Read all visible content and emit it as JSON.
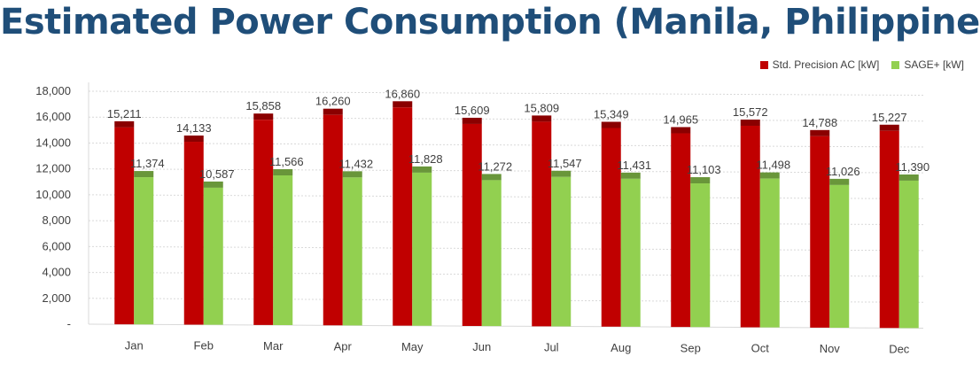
{
  "colors": {
    "title": "#1f4e79",
    "series1": "#c00000",
    "series2": "#92d050",
    "axis_text": "#404040",
    "grid": "#d9d9d9"
  },
  "chart_data": {
    "type": "bar",
    "title": "Estimated Power Consumption (Manila, Philippines)",
    "categories": [
      "Jan",
      "Feb",
      "Mar",
      "Apr",
      "May",
      "Jun",
      "Jul",
      "Aug",
      "Sep",
      "Oct",
      "Nov",
      "Dec"
    ],
    "series": [
      {
        "name": "Std. Precision AC [kW]",
        "color": "#c00000",
        "values": [
          15211,
          14133,
          15858,
          16260,
          16860,
          15609,
          15809,
          15349,
          14965,
          15572,
          14788,
          15227
        ],
        "labels": [
          "15,211",
          "14,133",
          "15,858",
          "16,260",
          "16,860",
          "15,609",
          "15,809",
          "15,349",
          "14,965",
          "15,572",
          "14,788",
          "15,227"
        ]
      },
      {
        "name": "SAGE+ [kW]",
        "color": "#92d050",
        "values": [
          11374,
          10587,
          11566,
          11432,
          11828,
          11272,
          11547,
          11431,
          11103,
          11498,
          11026,
          11390
        ],
        "labels": [
          "11,374",
          "10,587",
          "11,566",
          "11,432",
          "11,828",
          "11,272",
          "11,547",
          "11,431",
          "11,103",
          "11,498",
          "11,026",
          "11,390"
        ]
      }
    ],
    "ylim": [
      0,
      18000
    ],
    "yticks": [
      0,
      2000,
      4000,
      6000,
      8000,
      10000,
      12000,
      14000,
      16000,
      18000
    ],
    "ytick_labels": [
      "-",
      "2,000",
      "4,000",
      "6,000",
      "8,000",
      "10,000",
      "12,000",
      "14,000",
      "16,000",
      "18,000"
    ],
    "xlabel": "",
    "ylabel": "",
    "grid": true,
    "legend_position": "top-right",
    "style": "3d-clustered-column"
  }
}
